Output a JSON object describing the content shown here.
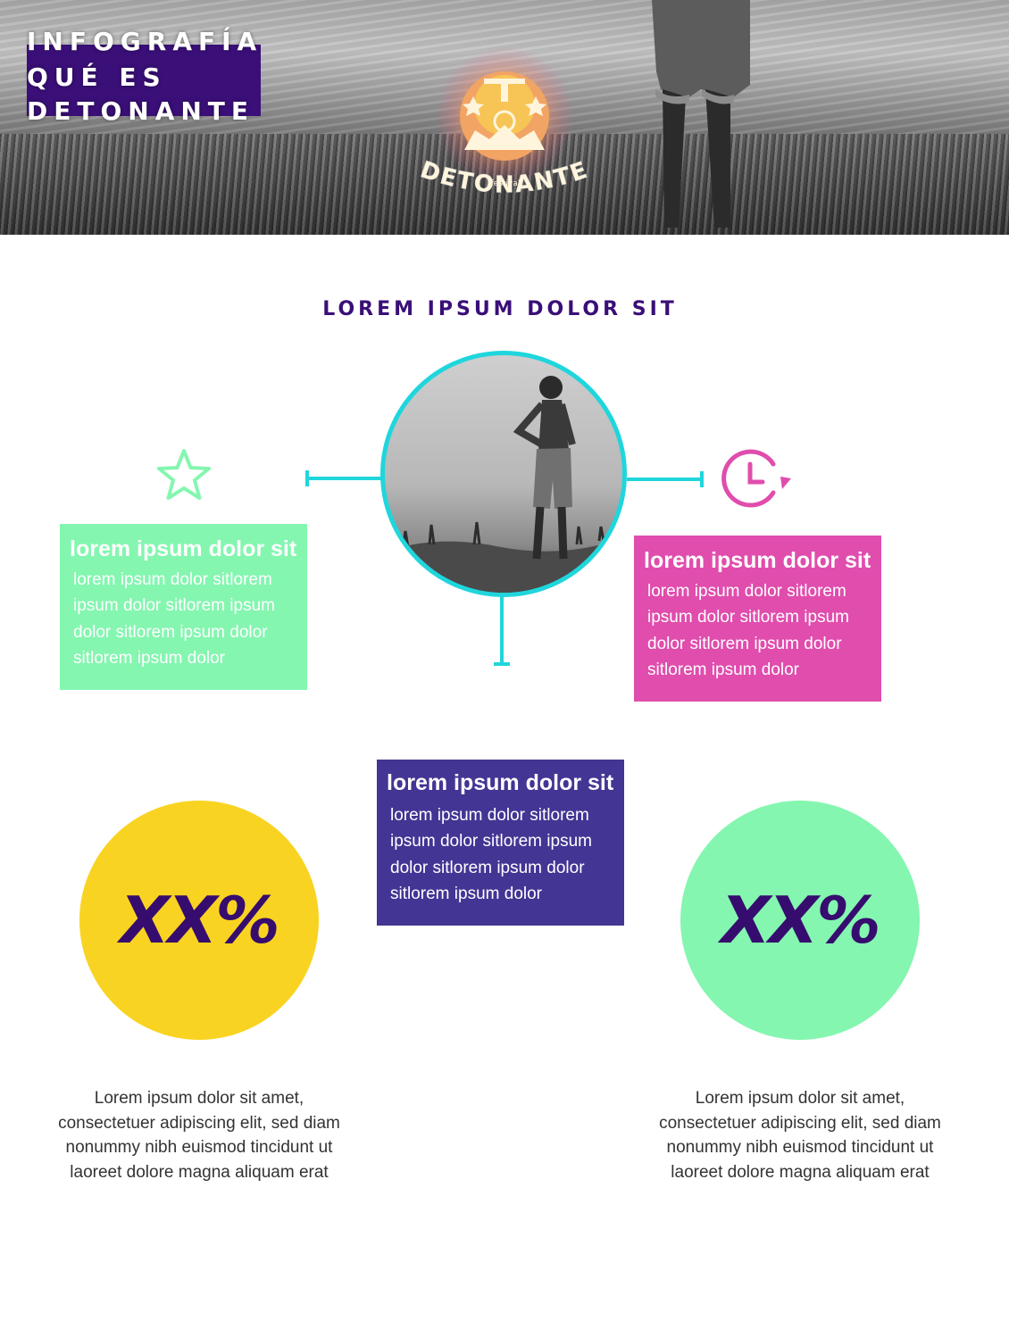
{
  "header": {
    "title_lines": [
      "INFOGRAFÍA",
      "QUÉ ES",
      "DETONANTE"
    ],
    "logo": {
      "name": "DETONANTE",
      "sub": "festival"
    }
  },
  "main": {
    "heading": "LOREM IPSUM DOLOR SIT",
    "cards": [
      {
        "title": "lorem ipsum dolor sit",
        "body": "lorem ipsum dolor sitlorem ipsum dolor sitlorem ipsum dolor sitlorem ipsum dolor sitlorem ipsum dolor"
      },
      {
        "title": "lorem ipsum dolor sit",
        "body": "lorem ipsum dolor sitlorem ipsum dolor sitlorem ipsum dolor sitlorem ipsum dolor sitlorem ipsum dolor"
      },
      {
        "title": "lorem ipsum dolor sit",
        "body": "lorem ipsum dolor sitlorem ipsum dolor sitlorem ipsum dolor sitlorem ipsum dolor sitlorem ipsum dolor"
      }
    ],
    "stats": [
      {
        "value": "XX%",
        "description": "Lorem ipsum dolor sit amet, consectetuer adipiscing elit, sed diam nonummy nibh euismod tincidunt ut laoreet dolore magna aliquam erat"
      },
      {
        "value": "XX%",
        "description": "Lorem ipsum dolor sit amet, consectetuer adipiscing elit, sed diam nonummy nibh euismod tincidunt ut laoreet dolore magna aliquam erat"
      }
    ],
    "icons": {
      "left": "star-icon",
      "right": "clock-refresh-icon"
    }
  },
  "colors": {
    "purple": "#3a0f78",
    "cyan": "#1fd6dc",
    "green": "#84f6b0",
    "pink": "#e04dad",
    "indigo": "#433594",
    "yellow": "#f9d321"
  }
}
